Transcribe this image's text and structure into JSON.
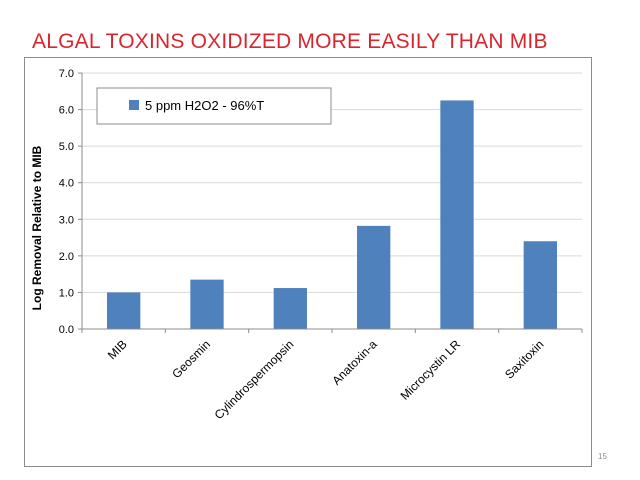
{
  "slide": {
    "title": "ALGAL TOXINS OXIDIZED MORE EASILY THAN MIB",
    "page_number": "15"
  },
  "colors": {
    "title": "#d9262e",
    "bar": "#4f81bd",
    "grid": "#d9d9d9",
    "axis": "#8c8c8c"
  },
  "chart_data": {
    "type": "bar",
    "title": "",
    "xlabel": "",
    "ylabel": "Log Removal Relative to MIB",
    "ylim": [
      0,
      7
    ],
    "y_ticks": [
      "0.0",
      "1.0",
      "2.0",
      "3.0",
      "4.0",
      "5.0",
      "6.0",
      "7.0"
    ],
    "grid": true,
    "legend_position": "top-left",
    "categories": [
      "MIB",
      "Geosmin",
      "Cylindrospermopsin",
      "Anatoxin-a",
      "Microcystin LR",
      "Saxitoxin"
    ],
    "series": [
      {
        "name": "5 ppm H2O2 - 96%T",
        "values": [
          1.0,
          1.35,
          1.12,
          2.82,
          6.25,
          2.4
        ]
      }
    ]
  }
}
